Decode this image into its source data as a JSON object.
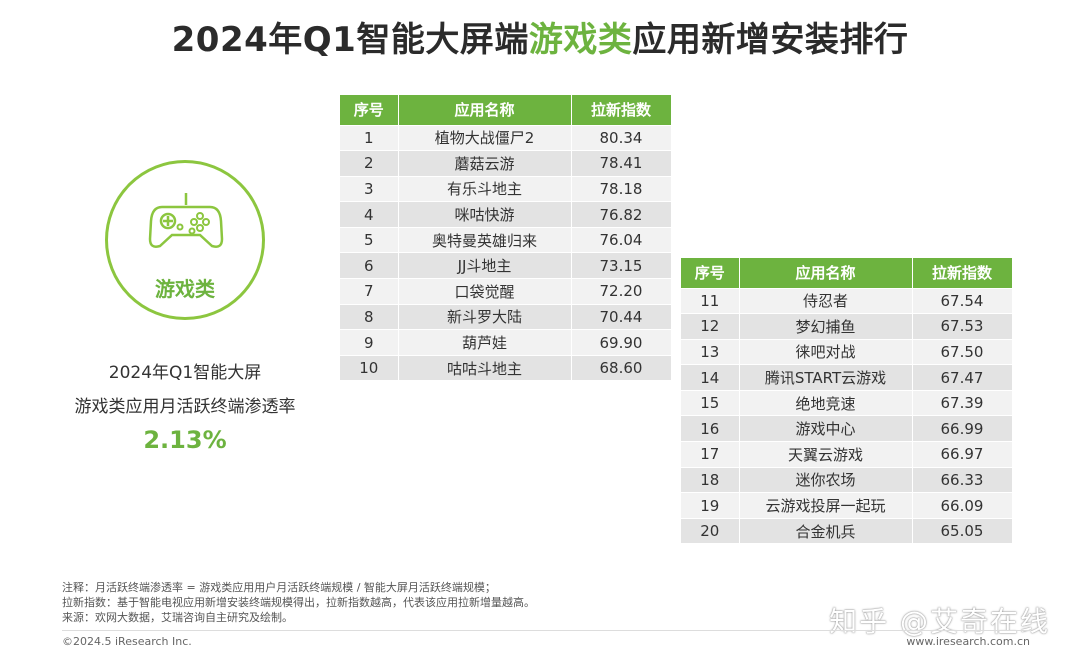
{
  "title": {
    "part1": "2024年Q1智能大屏端",
    "highlight": "游戏类",
    "part2": "应用新增安装排行"
  },
  "badge": {
    "icon": "gamepad-icon",
    "category": "游戏类"
  },
  "stat": {
    "line1": "2024年Q1智能大屏",
    "line2": "游戏类应用月活跃终端渗透率",
    "value": "2.13%"
  },
  "colors": {
    "accent": "#6db33f",
    "circle": "#8cc63f"
  },
  "chart_data": {
    "type": "table",
    "columns": [
      "序号",
      "应用名称",
      "拉新指数"
    ],
    "rows": [
      [
        "1",
        "植物大战僵尸2",
        "80.34"
      ],
      [
        "2",
        "蘑菇云游",
        "78.41"
      ],
      [
        "3",
        "有乐斗地主",
        "78.18"
      ],
      [
        "4",
        "咪咕快游",
        "76.82"
      ],
      [
        "5",
        "奥特曼英雄归来",
        "76.04"
      ],
      [
        "6",
        "JJ斗地主",
        "73.15"
      ],
      [
        "7",
        "口袋觉醒",
        "72.20"
      ],
      [
        "8",
        "新斗罗大陆",
        "70.44"
      ],
      [
        "9",
        "葫芦娃",
        "69.90"
      ],
      [
        "10",
        "咕咕斗地主",
        "68.60"
      ],
      [
        "11",
        "侍忍者",
        "67.54"
      ],
      [
        "12",
        "梦幻捕鱼",
        "67.53"
      ],
      [
        "13",
        "徕吧对战",
        "67.50"
      ],
      [
        "14",
        "腾讯START云游戏",
        "67.47"
      ],
      [
        "15",
        "绝地竞速",
        "67.39"
      ],
      [
        "16",
        "游戏中心",
        "66.99"
      ],
      [
        "17",
        "天翼云游戏",
        "66.97"
      ],
      [
        "18",
        "迷你农场",
        "66.33"
      ],
      [
        "19",
        "云游戏投屏一起玩",
        "66.09"
      ],
      [
        "20",
        "合金机兵",
        "65.05"
      ]
    ]
  },
  "notes": {
    "line1": "注释：月活跃终端渗透率 = 游戏类应用用户月活跃终端规模 / 智能大屏月活跃终端规模；",
    "line2": "拉新指数：基于智能电视应用新增安装终端规模得出，拉新指数越高，代表该应用拉新增量越高。",
    "line3": "来源：欢网大数据，艾瑞咨询自主研究及绘制。"
  },
  "footer": {
    "copyright": "©2024.5 iResearch Inc.",
    "site": "www.iresearch.com.cn",
    "watermark": "知乎 @艾奇在线"
  }
}
